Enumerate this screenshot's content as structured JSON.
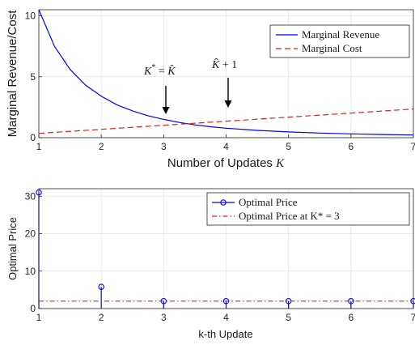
{
  "chart_data": [
    {
      "type": "line",
      "xlabel": "Number of Updates",
      "xlabel_var": "K",
      "ylabel": "Marginal Revenue/Cost",
      "xlim": [
        1,
        7
      ],
      "ylim": [
        0,
        10.5
      ],
      "xticks": [
        "1",
        "2",
        "3",
        "4",
        "5",
        "6",
        "7"
      ],
      "yticks": [
        "0",
        "5",
        "10"
      ],
      "grid": true,
      "legend_position": "top-right",
      "series": [
        {
          "name": "Marginal Revenue",
          "color": "#0000ff",
          "style": "solid",
          "x": [
            1,
            1.25,
            1.5,
            1.75,
            2,
            2.25,
            2.5,
            2.75,
            3,
            3.25,
            3.5,
            3.75,
            4,
            4.5,
            5,
            5.5,
            6,
            6.5,
            7
          ],
          "y": [
            10.5,
            7.5,
            5.6,
            4.3,
            3.4,
            2.7,
            2.2,
            1.8,
            1.5,
            1.25,
            1.05,
            0.9,
            0.78,
            0.6,
            0.47,
            0.38,
            0.31,
            0.26,
            0.22
          ]
        },
        {
          "name": "Marginal Cost",
          "color": "#dd2222",
          "style": "dashed",
          "x": [
            1,
            7
          ],
          "y": [
            0.35,
            2.35
          ]
        }
      ],
      "annotations": [
        {
          "text": "K* = K̂",
          "x": 3,
          "y": 1.2
        },
        {
          "text": "K̂ + 1",
          "x": 4,
          "y": 1.2
        }
      ]
    },
    {
      "type": "scatter",
      "xlabel": "k-th Update",
      "ylabel": "Optimal Price",
      "xlim": [
        1,
        7
      ],
      "ylim": [
        0,
        32
      ],
      "xticks": [
        "1",
        "2",
        "3",
        "4",
        "5",
        "6",
        "7"
      ],
      "yticks": [
        "0",
        "10",
        "20",
        "30"
      ],
      "grid": true,
      "legend_position": "top-right",
      "series": [
        {
          "name": "Optimal Price",
          "color": "#0000ff",
          "style": "stem",
          "x": [
            1,
            2,
            3,
            4,
            5,
            6,
            7
          ],
          "y": [
            31,
            5.8,
            2,
            2,
            2,
            2,
            2
          ]
        },
        {
          "name": "Optimal Price at K* = 3",
          "color": "#dd2222",
          "style": "dashdot",
          "x": [
            1,
            7
          ],
          "y": [
            2,
            2
          ]
        }
      ]
    }
  ]
}
